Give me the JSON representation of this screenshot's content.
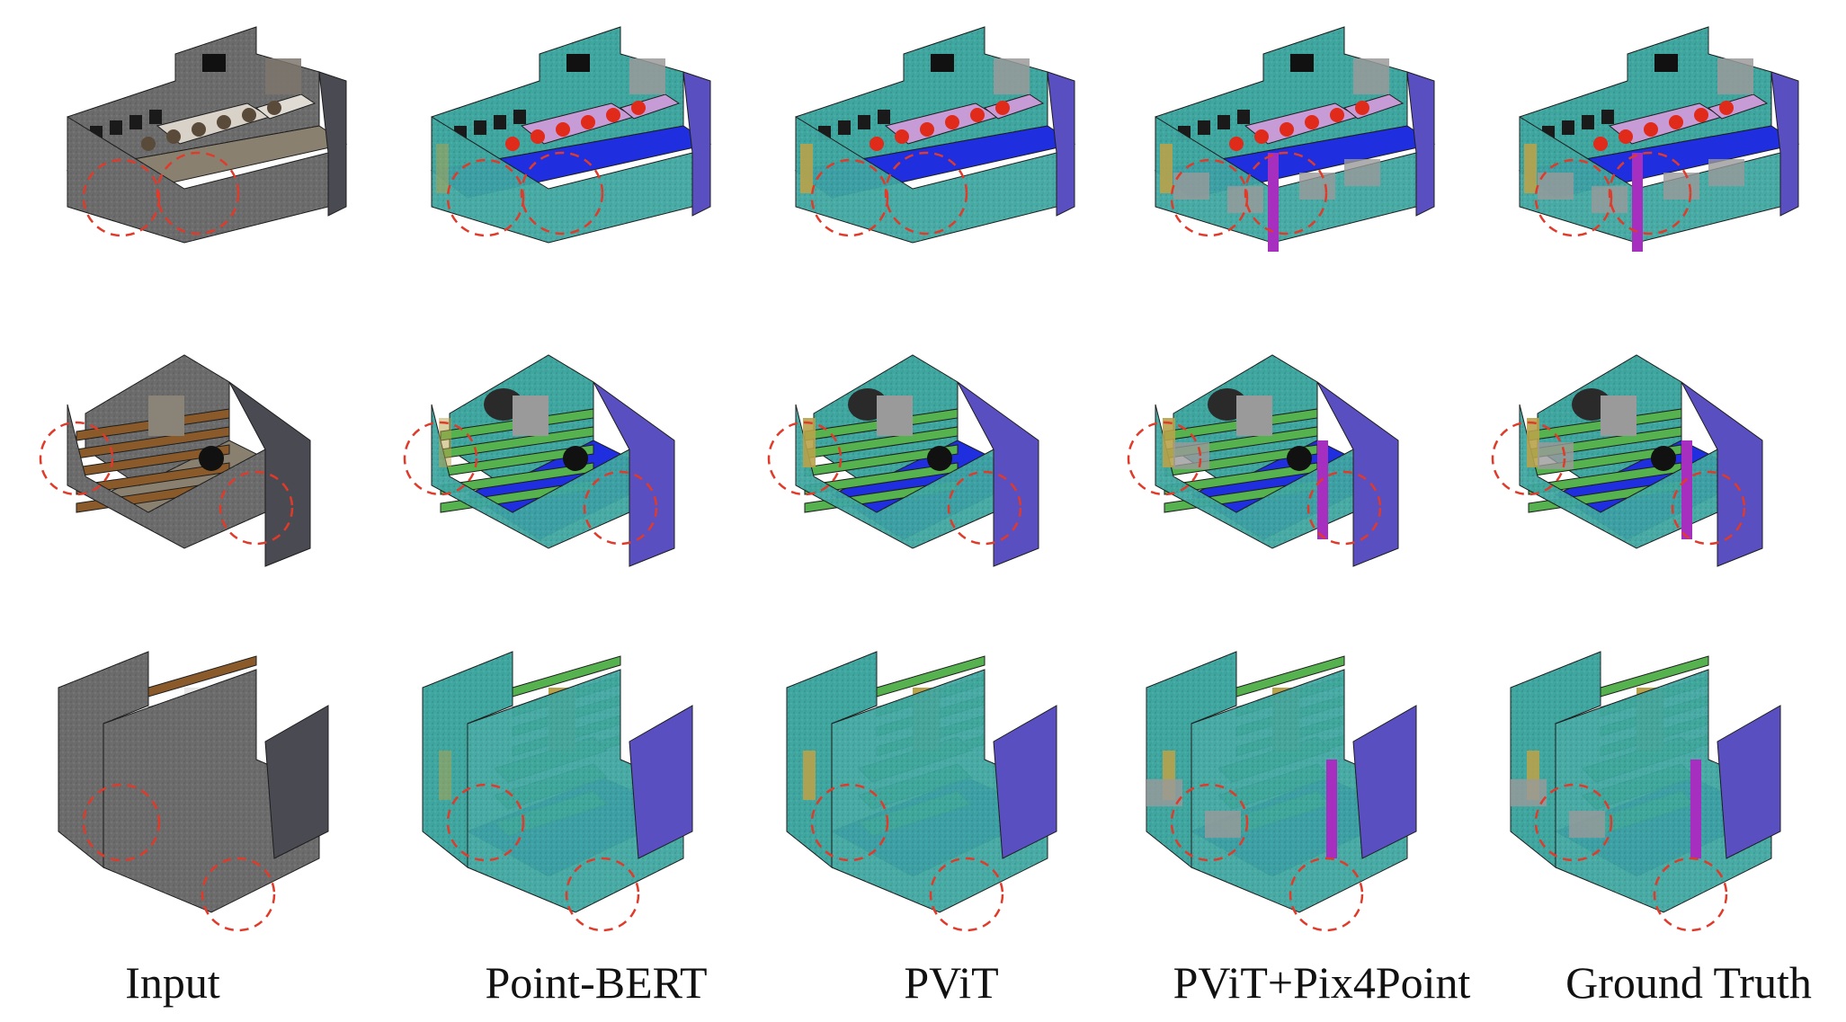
{
  "figure": {
    "columns": [
      {
        "id": "input",
        "label": "Input"
      },
      {
        "id": "point-bert",
        "label": "Point-BERT"
      },
      {
        "id": "pvit",
        "label": "PViT"
      },
      {
        "id": "pvit-pix4point",
        "label": "PViT+Pix4Point"
      },
      {
        "id": "ground-truth",
        "label": "Ground Truth"
      }
    ],
    "rows": 3
  },
  "palette": {
    "wall": "#3fa6a0",
    "floor": "#1f2fe0",
    "chair": "#e02a1a",
    "table": "#c79bd6",
    "bookcase": "#56b24e",
    "board": "#5a4fc0",
    "column": "#a72fbf",
    "door": "#b8a24a",
    "clutter": "#2a2a2a",
    "window": "#9a9a9a",
    "input_gray": "#6c6c6c",
    "input_wood": "#8a5a2a",
    "highlight": "#e03a2a"
  }
}
